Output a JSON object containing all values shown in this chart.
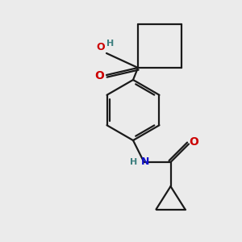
{
  "bg_color": "#ebebeb",
  "bond_color": "#1a1a1a",
  "bond_width": 1.6,
  "O_color": "#cc0000",
  "N_color": "#1111cc",
  "H_color": "#3d7f7f",
  "figsize": [
    3.0,
    3.0
  ],
  "dpi": 100,
  "xlim": [
    0,
    10
  ],
  "ylim": [
    0,
    10
  ]
}
